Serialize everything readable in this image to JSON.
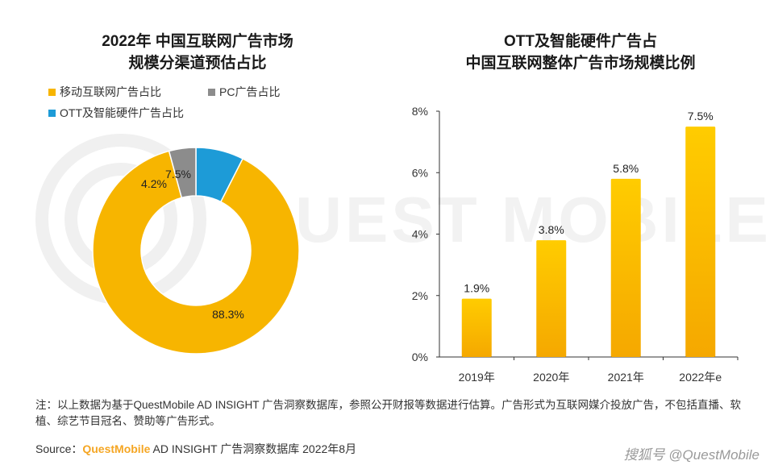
{
  "watermark": {
    "brand": "QUEST MOBILE",
    "footer": "搜狐号 @QuestMobile"
  },
  "left_title": {
    "line1": "2022年 中国互联网广告市场",
    "line2": "规模分渠道预估占比"
  },
  "right_title": {
    "line1": "OTT及智能硬件广告占",
    "line2": "中国互联网整体广告市场规模比例"
  },
  "colors": {
    "mobile": "#f7b500",
    "pc": "#8c8c8c",
    "ott": "#1d9bd7",
    "bar_top": "#ffcc00",
    "bar_bottom": "#f5a800"
  },
  "chart_data": [
    {
      "type": "pie",
      "variant": "donut",
      "title": "2022年 中国互联网广告市场规模分渠道预估占比",
      "legend": [
        "移动互联网广告占比",
        "PC广告占比",
        "OTT及智能硬件广告占比"
      ],
      "slices": [
        {
          "name": "OTT及智能硬件广告占比",
          "value": 7.5,
          "label": "7.5%",
          "color": "#1d9bd7"
        },
        {
          "name": "移动互联网广告占比",
          "value": 88.3,
          "label": "88.3%",
          "color": "#f7b500"
        },
        {
          "name": "PC广告占比",
          "value": 4.2,
          "label": "4.2%",
          "color": "#8c8c8c"
        }
      ]
    },
    {
      "type": "bar",
      "title": "OTT及智能硬件广告占中国互联网整体广告市场规模比例",
      "categories": [
        "2019年",
        "2020年",
        "2021年",
        "2022年e"
      ],
      "values": [
        1.9,
        3.8,
        5.8,
        7.5
      ],
      "value_labels": [
        "1.9%",
        "3.8%",
        "5.8%",
        "7.5%"
      ],
      "yticks": [
        "0%",
        "2%",
        "4%",
        "6%",
        "8%"
      ],
      "ylim": [
        0,
        8
      ],
      "xlabel": "",
      "ylabel": ""
    }
  ],
  "note": "注：以上数据为基于QuestMobile AD INSIGHT 广告洞察数据库，参照公开财报等数据进行估算。广告形式为互联网媒介投放广告，不包括直播、软植、综艺节目冠名、赞助等广告形式。",
  "source": {
    "prefix": "Source：",
    "brand": "QuestMobile",
    "rest": " AD INSIGHT 广告洞察数据库 2022年8月"
  }
}
